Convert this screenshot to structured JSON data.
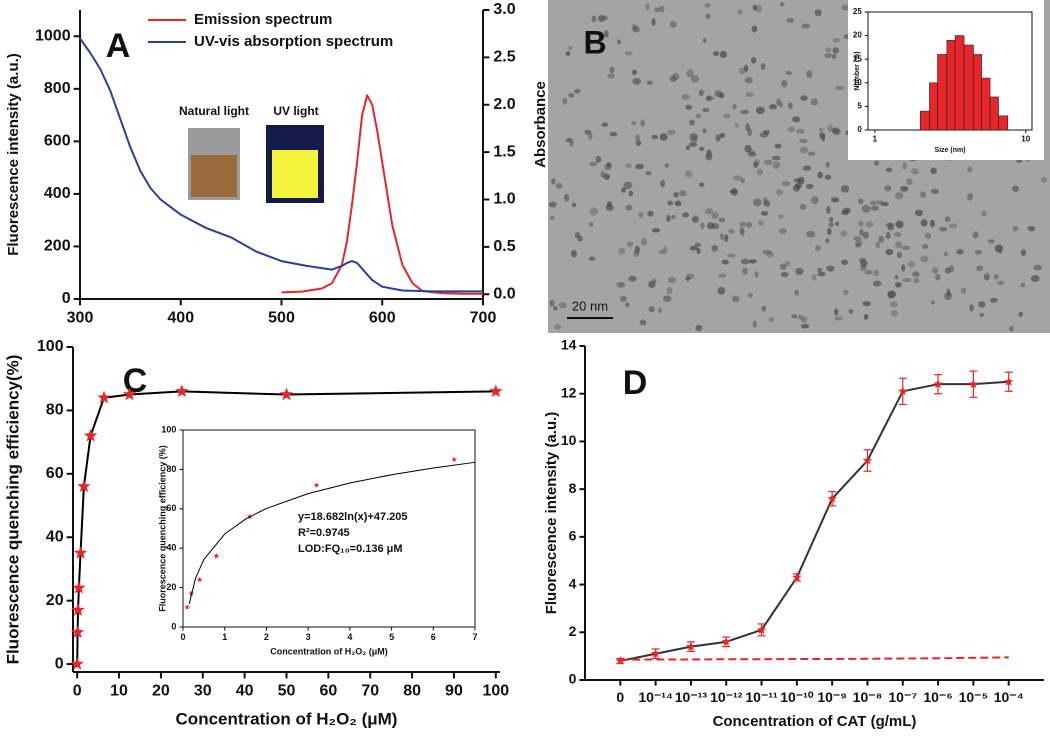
{
  "image_panel": {
    "label": "B",
    "scale_bar": "20 nm"
  },
  "chart_data": [
    {
      "type": "line",
      "panel_label": "A",
      "ylabel": "Fluorescence intensity (a.u.)",
      "y2label": "Absorbance",
      "xlim": [
        300,
        700
      ],
      "xticks": [
        300,
        400,
        500,
        600,
        700
      ],
      "ylim": [
        0,
        1100
      ],
      "yticks": [
        0,
        200,
        400,
        600,
        800,
        1000
      ],
      "y2lim": [
        -0.05,
        3.0
      ],
      "y2ticks": [
        {
          "value": 0,
          "label": "0.0"
        },
        0.5,
        {
          "value": 1,
          "label": "1.0"
        },
        1.5,
        {
          "value": 2,
          "label": "2.0"
        },
        2.5,
        {
          "value": 3,
          "label": "3.0"
        }
      ],
      "annotations": [
        "Natural light",
        "UV light"
      ],
      "series": [
        {
          "name": "Emission spectrum",
          "color": "#e8262a",
          "x": [
            500,
            520,
            540,
            550,
            560,
            565,
            570,
            575,
            580,
            585,
            590,
            595,
            600,
            605,
            610,
            620,
            630,
            640,
            660,
            680,
            700
          ],
          "values": [
            25,
            28,
            40,
            60,
            130,
            220,
            360,
            520,
            700,
            775,
            740,
            640,
            520,
            400,
            280,
            130,
            60,
            30,
            22,
            20,
            20
          ]
        },
        {
          "name": "UV-vis absorption spectrum",
          "color": "#2b3f9a",
          "axis": "y2",
          "x": [
            300,
            310,
            320,
            330,
            340,
            350,
            360,
            370,
            380,
            390,
            400,
            425,
            450,
            475,
            500,
            525,
            550,
            560,
            565,
            570,
            575,
            580,
            590,
            600,
            620,
            650,
            700
          ],
          "values": [
            2.7,
            2.55,
            2.38,
            2.15,
            1.85,
            1.55,
            1.3,
            1.12,
            1.0,
            0.92,
            0.84,
            0.7,
            0.6,
            0.45,
            0.35,
            0.3,
            0.26,
            0.3,
            0.33,
            0.35,
            0.33,
            0.27,
            0.15,
            0.08,
            0.04,
            0.03,
            0.03
          ]
        }
      ]
    },
    {
      "type": "histogram",
      "xlabel": "Size (nm)",
      "ylabel": "Number (%)",
      "xlog": true,
      "xlim": [
        0.9,
        11
      ],
      "xticks": [
        1,
        10
      ],
      "ylim": [
        0,
        25
      ],
      "yticks": [
        0,
        5,
        10,
        15,
        20,
        25
      ],
      "color": "#e8262a",
      "bins": [
        2.0,
        2.3,
        2.6,
        3.0,
        3.4,
        3.9,
        4.5,
        5.1,
        5.8,
        6.6,
        7.6
      ],
      "values": [
        4,
        10,
        16,
        19,
        20,
        18,
        16,
        11,
        7,
        3
      ]
    },
    {
      "type": "line",
      "panel_label": "C",
      "xlabel": "Concentration of H₂O₂ (μM)",
      "ylabel": "Fluorescence quenching efficiency(%)",
      "xlim": [
        -1,
        101
      ],
      "xticks": [
        0,
        10,
        20,
        30,
        40,
        50,
        60,
        70,
        80,
        90,
        100
      ],
      "ylim": [
        -2.5,
        100
      ],
      "yticks": [
        0,
        20,
        40,
        60,
        80,
        100
      ],
      "series": [
        {
          "color": "#e8262a",
          "line_color": "#000000",
          "marker": "star",
          "x": [
            0,
            0.1,
            0.2,
            0.4,
            0.8,
            1.6,
            3.2,
            6.4,
            12.5,
            25,
            50,
            100
          ],
          "values": [
            0,
            10,
            17,
            24,
            35,
            56,
            72,
            84,
            85,
            86,
            85,
            86
          ]
        }
      ]
    },
    {
      "type": "scatter",
      "xlabel": "Concentration of H₂O₂ (μM)",
      "ylabel": "Fluorescence quenching efficiency (%)",
      "xlim": [
        0,
        7
      ],
      "xticks": [
        0,
        1,
        2,
        3,
        4,
        5,
        6,
        7
      ],
      "ylim": [
        0,
        100
      ],
      "yticks": [
        0,
        20,
        40,
        60,
        80,
        100
      ],
      "annotations": [
        "y=18.682ln(x)+47.205",
        "R²=0.9745",
        "LOD:FQ₁₀=0.136 μM"
      ],
      "series": [
        {
          "color": "#e8262a",
          "marker": "star",
          "x": [
            0.1,
            0.2,
            0.4,
            0.8,
            1.6,
            3.2,
            6.5
          ],
          "values": [
            10,
            17,
            24,
            36,
            56,
            72,
            85
          ]
        },
        {
          "color": "#000000",
          "line": true,
          "x": [
            0.15,
            0.3,
            0.5,
            1,
            1.5,
            2,
            3,
            4,
            5,
            6,
            7
          ],
          "values": [
            11.8,
            24.7,
            34.3,
            47.2,
            54.8,
            60.2,
            67.7,
            73.1,
            77.3,
            80.7,
            83.6
          ]
        }
      ]
    },
    {
      "type": "line",
      "panel_label": "D",
      "xlabel": "Concentration of CAT (g/mL)",
      "ylabel": "Fluorescence intensity (a.u.)",
      "categories": [
        "0",
        "10⁻¹⁴",
        "10⁻¹³",
        "10⁻¹²",
        "10⁻¹¹",
        "10⁻¹⁰",
        "10⁻⁹",
        "10⁻⁸",
        "10⁻⁷",
        "10⁻⁶",
        "10⁻⁵",
        "10⁻⁴"
      ],
      "ylim": [
        0,
        14
      ],
      "yticks": [
        0,
        2,
        4,
        6,
        8,
        10,
        12,
        14
      ],
      "series": [
        {
          "color": "#e8262a",
          "line_color": "#333333",
          "marker": "star",
          "values": [
            0.8,
            1.1,
            1.4,
            1.6,
            2.1,
            4.3,
            7.6,
            9.2,
            12.1,
            12.4,
            12.4,
            12.5
          ],
          "errors": [
            0.1,
            0.2,
            0.2,
            0.2,
            0.25,
            0.15,
            0.3,
            0.45,
            0.55,
            0.4,
            0.55,
            0.4
          ]
        },
        {
          "color": "#e8262a",
          "dash": true,
          "values": [
            0.85,
            0.86,
            0.86,
            0.87,
            0.87,
            0.88,
            0.88,
            0.89,
            0.9,
            0.91,
            0.93,
            0.95
          ]
        }
      ]
    }
  ]
}
